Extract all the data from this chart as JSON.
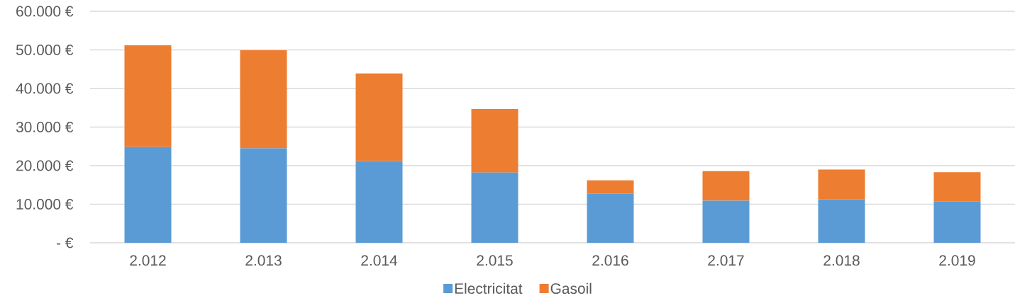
{
  "chart_data": {
    "type": "bar",
    "stacked": true,
    "categories": [
      "2.012",
      "2.013",
      "2.014",
      "2.015",
      "2.016",
      "2.017",
      "2.018",
      "2.019"
    ],
    "series": [
      {
        "name": "Electricitat",
        "color": "#5b9bd5",
        "values": [
          24800,
          24500,
          21200,
          18200,
          12700,
          10900,
          11300,
          10700
        ]
      },
      {
        "name": "Gasoil",
        "color": "#ed7d31",
        "values": [
          26400,
          25400,
          22700,
          16500,
          3500,
          7700,
          7700,
          7600
        ]
      }
    ],
    "ylim": [
      0,
      60000
    ],
    "yticks": [
      {
        "value": 0,
        "label": "- €"
      },
      {
        "value": 10000,
        "label": "10.000 €"
      },
      {
        "value": 20000,
        "label": "20.000 €"
      },
      {
        "value": 30000,
        "label": "30.000 €"
      },
      {
        "value": 40000,
        "label": "40.000 €"
      },
      {
        "value": 50000,
        "label": "50.000 €"
      },
      {
        "value": 60000,
        "label": "60.000 €"
      }
    ],
    "grid": "y",
    "legend": "bottom"
  }
}
